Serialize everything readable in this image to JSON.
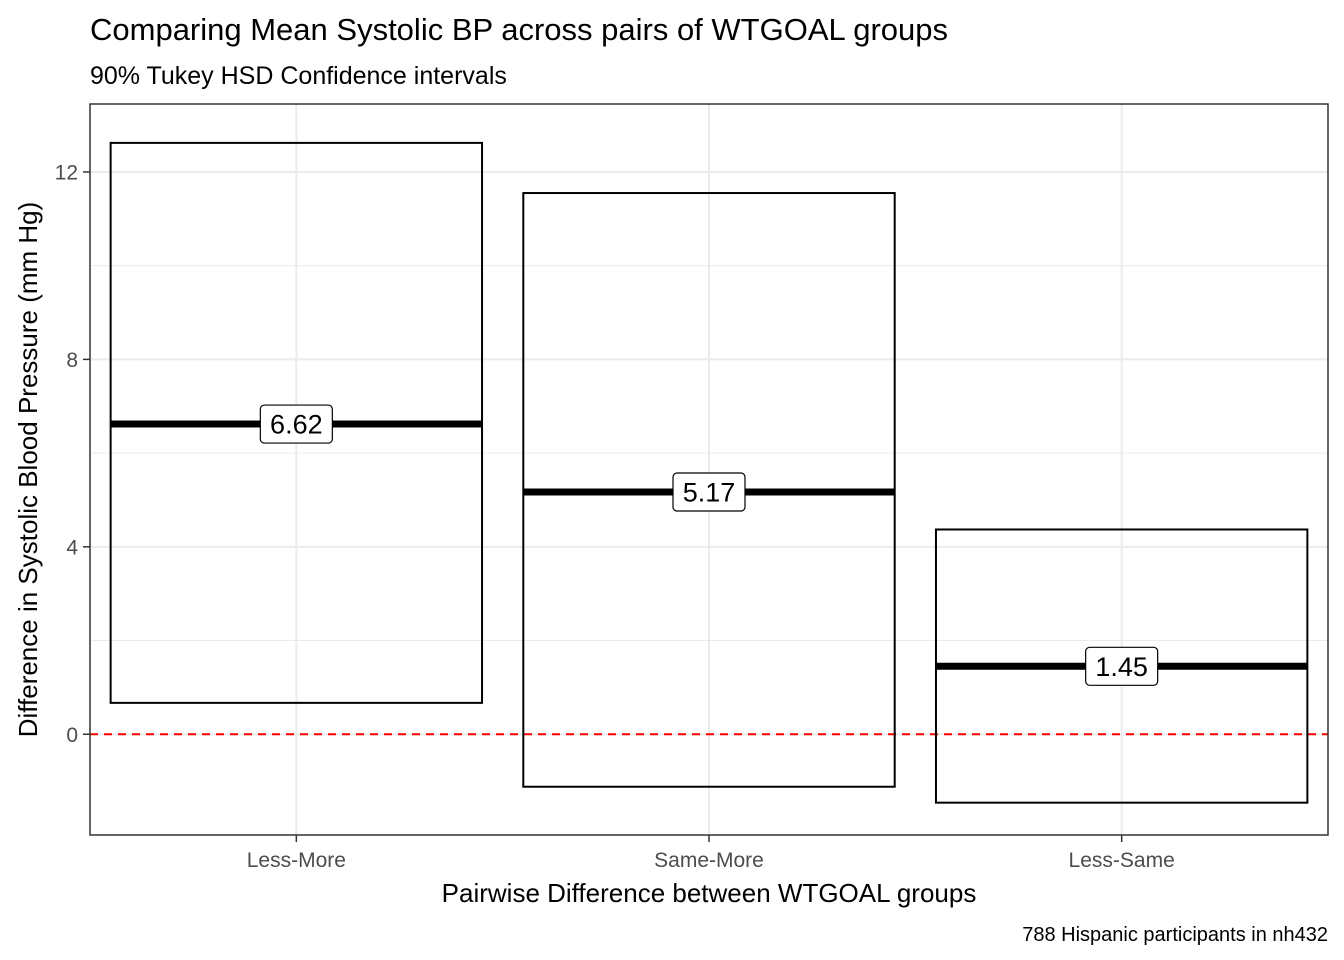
{
  "chart_data": {
    "type": "crossbar",
    "title": "Comparing Mean Systolic BP across pairs of WTGOAL groups",
    "subtitle": "90% Tukey HSD Confidence intervals",
    "xlabel": "Pairwise Difference between WTGOAL groups",
    "ylabel": "Difference in Systolic Blood Pressure (mm Hg)",
    "caption": "788 Hispanic participants in nh432",
    "categories": [
      "Less-More",
      "Same-More",
      "Less-Same"
    ],
    "estimates": [
      6.62,
      5.17,
      1.45
    ],
    "estimate_labels": [
      "6.62",
      "5.17",
      "1.45"
    ],
    "lower": [
      0.67,
      -1.12,
      -1.46
    ],
    "upper": [
      12.62,
      11.55,
      4.37
    ],
    "ylim": [
      -2.15,
      13.45
    ],
    "yticks": [
      0,
      4,
      8,
      12
    ],
    "ytick_labels": [
      "0",
      "4",
      "8",
      "12"
    ],
    "reference_line": {
      "y": 0,
      "color": "#ff0000",
      "style": "dashed"
    },
    "grid": true,
    "colors": {
      "box": "#000000",
      "estimate_line": "#000000",
      "reference": "#ff0000",
      "grid": "#ebebeb"
    }
  }
}
